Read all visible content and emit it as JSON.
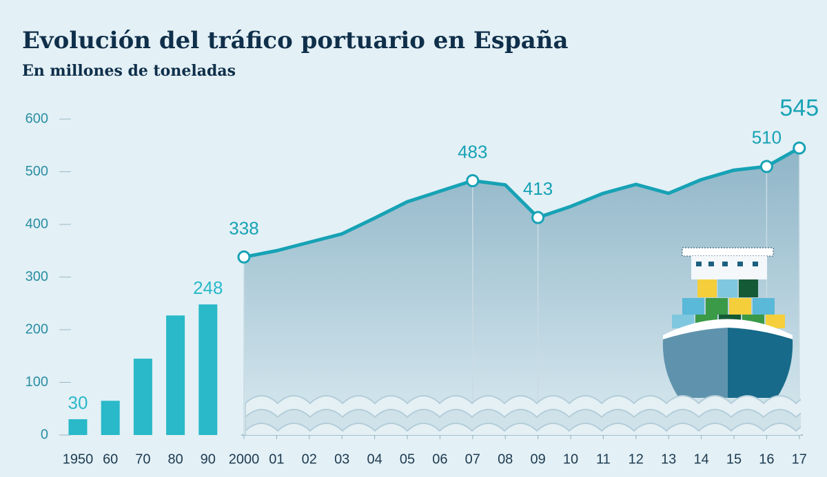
{
  "title": "Evolución del tráfico portuario en España",
  "subtitle": "En millones de toneladas",
  "chart_data": [
    {
      "type": "bar",
      "categories": [
        "1950",
        "60",
        "70",
        "80",
        "90"
      ],
      "values": [
        30,
        65,
        145,
        227,
        248
      ],
      "value_labels": [
        "30",
        null,
        null,
        null,
        "248"
      ],
      "color": "#29b9c9",
      "ylim": [
        0,
        600
      ],
      "yticks": [
        0,
        100,
        200,
        300,
        400,
        500,
        600
      ]
    },
    {
      "type": "line",
      "categories": [
        "2000",
        "01",
        "02",
        "03",
        "04",
        "05",
        "06",
        "07",
        "08",
        "09",
        "10",
        "11",
        "12",
        "13",
        "14",
        "15",
        "16",
        "17"
      ],
      "values": [
        338,
        350,
        366,
        382,
        412,
        443,
        463,
        483,
        475,
        413,
        434,
        459,
        476,
        459,
        485,
        503,
        510,
        545
      ],
      "value_labels": [
        "338",
        null,
        null,
        null,
        null,
        null,
        null,
        "483",
        null,
        "413",
        null,
        null,
        null,
        null,
        null,
        null,
        "510",
        "545"
      ],
      "color": "#17a2b5",
      "ylim": [
        0,
        600
      ]
    }
  ]
}
